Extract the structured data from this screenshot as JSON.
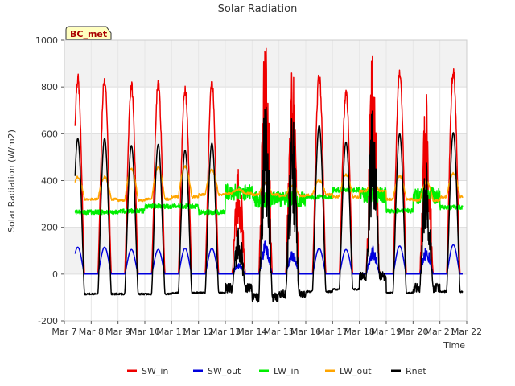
{
  "chart_data": {
    "type": "line",
    "title": "Solar Radiation",
    "xlabel": "Time",
    "ylabel": "Solar Radiation (W/m2)",
    "ylim": [
      -200,
      1000
    ],
    "xlim": [
      0,
      15
    ],
    "yticks": [
      -200,
      0,
      200,
      400,
      600,
      800,
      1000
    ],
    "xtick_labels": [
      "Mar 7",
      "Mar 8",
      "Mar 9",
      "Mar 10",
      "Mar 11",
      "Mar 12",
      "Mar 13",
      "Mar 14",
      "Mar 15",
      "Mar 16",
      "Mar 17",
      "Mar 18",
      "Mar 19",
      "Mar 20",
      "Mar 21",
      "Mar 22"
    ],
    "x_start": "Mar 7",
    "data_start": 0.4,
    "data_end": 14.85,
    "grid": true,
    "shaded_bands": true,
    "legend_position": "bottom",
    "station_label": "BC_met",
    "series": [
      {
        "name": "SW_in",
        "color": "#ee0000"
      },
      {
        "name": "SW_out",
        "color": "#0000dd"
      },
      {
        "name": "LW_in",
        "color": "#00ee00"
      },
      {
        "name": "LW_out",
        "color": "#ffa500"
      },
      {
        "name": "Rnet",
        "color": "#000000"
      }
    ],
    "daily_peaks": {
      "SW_in": [
        835,
        805,
        815,
        790,
        815,
        400,
        890,
        740,
        845,
        770,
        815,
        865,
        690,
        870
      ],
      "SW_out": [
        115,
        105,
        105,
        110,
        110,
        40,
        125,
        90,
        110,
        105,
        100,
        120,
        100,
        125
      ],
      "Rnet": [
        580,
        550,
        555,
        530,
        560,
        170,
        650,
        560,
        635,
        565,
        610,
        600,
        420,
        605
      ],
      "LW_in_day": [
        265,
        270,
        290,
        290,
        265,
        350,
        320,
        320,
        330,
        360,
        340,
        270,
        335,
        285
      ],
      "LW_out_day": [
        415,
        450,
        455,
        460,
        445,
        360,
        390,
        380,
        400,
        425,
        385,
        420,
        395,
        430
      ],
      "LW_out_night": [
        320,
        315,
        320,
        330,
        340,
        345,
        340,
        335,
        340,
        330,
        355,
        320,
        315,
        330
      ],
      "Rnet_night": [
        -85,
        -85,
        -85,
        -80,
        -80,
        -60,
        -100,
        -85,
        -75,
        -65,
        -10,
        -80,
        -60,
        -75
      ]
    }
  }
}
